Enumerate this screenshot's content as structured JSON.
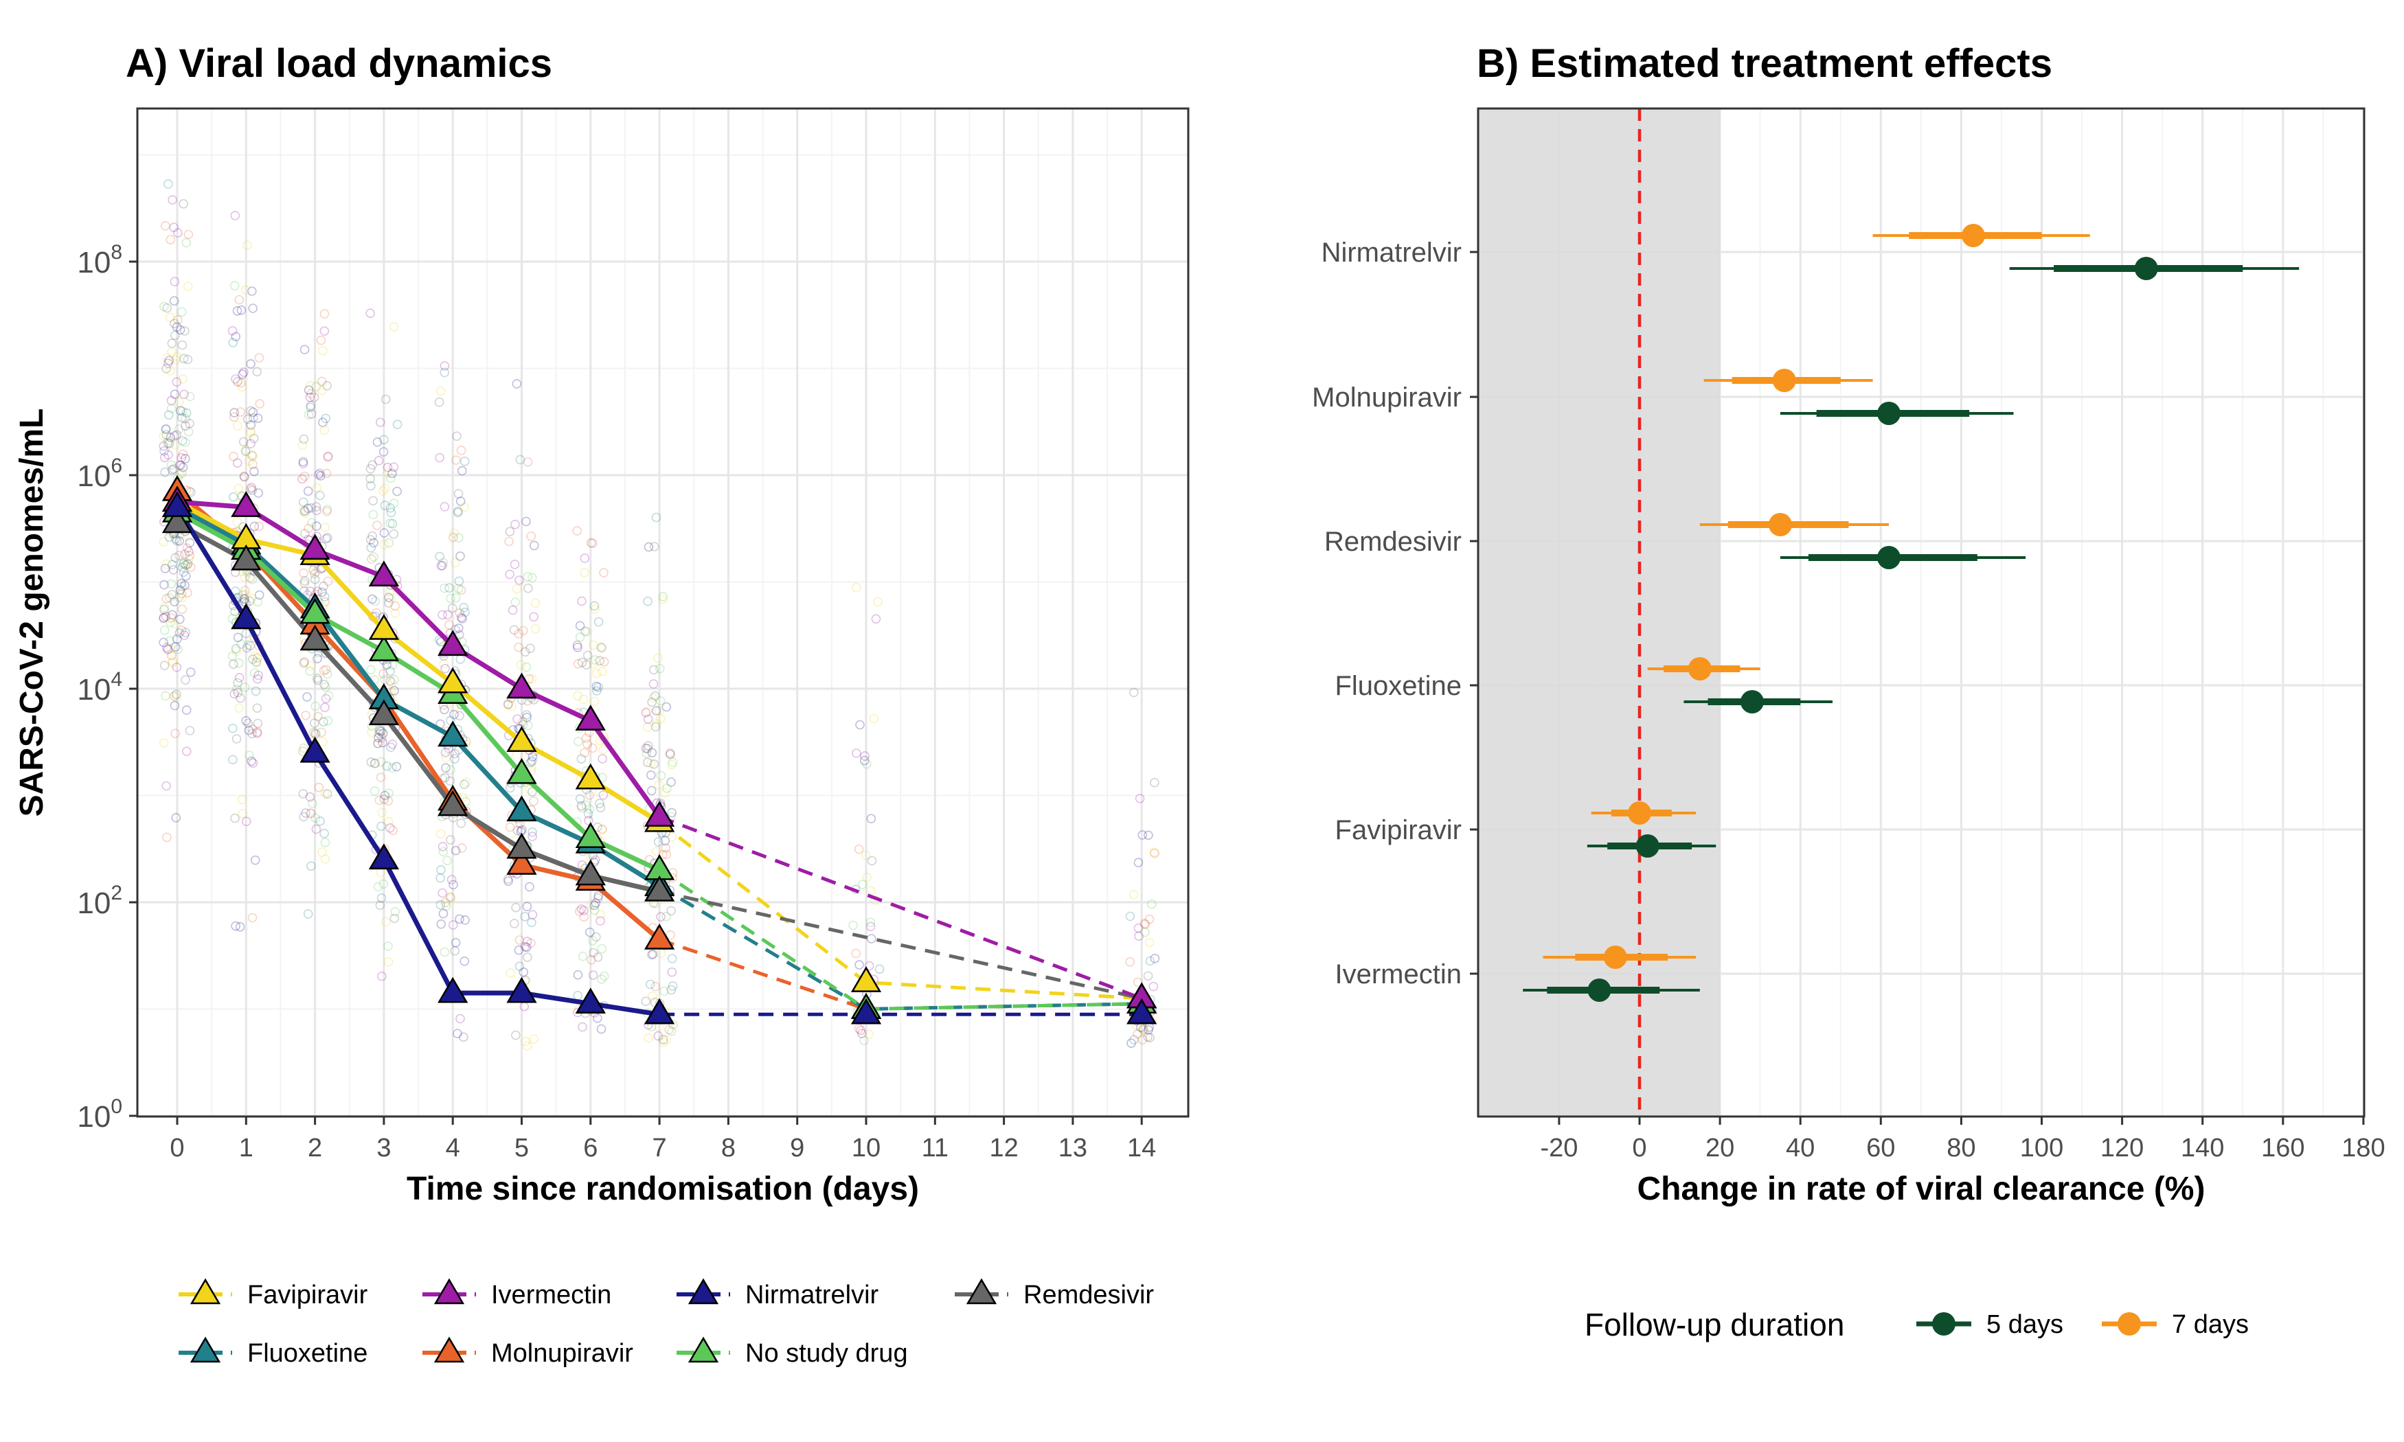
{
  "chart_data": [
    {
      "type": "line",
      "title": "A) Viral load dynamics",
      "xlabel": "Time since randomisation (days)",
      "ylabel": "SARS-CoV-2 genomes/mL",
      "y_scale": "log10",
      "ylim_log10": [
        0,
        9.3
      ],
      "y_ticks": [
        {
          "base": "10",
          "exp": "0"
        },
        {
          "base": "10",
          "exp": "2"
        },
        {
          "base": "10",
          "exp": "4"
        },
        {
          "base": "10",
          "exp": "6"
        },
        {
          "base": "10",
          "exp": "8"
        }
      ],
      "x_ticks": [
        "0",
        "1",
        "2",
        "3",
        "4",
        "5",
        "6",
        "7",
        "8",
        "9",
        "10",
        "11",
        "12",
        "13",
        "14"
      ],
      "grid": true,
      "legend_position": "bottom",
      "solid_segment_note": "solid lines days 0-7, dashed to days 10 and 14",
      "series": [
        {
          "name": "Favipiravir",
          "color": "#f2d41b",
          "x": [
            0,
            1,
            2,
            3,
            4,
            5,
            6,
            7,
            10,
            14
          ],
          "log10_y": [
            5.75,
            5.4,
            5.25,
            4.55,
            4.05,
            3.5,
            3.15,
            2.75,
            1.25,
            1.1
          ]
        },
        {
          "name": "Ivermectin",
          "color": "#9e1ca6",
          "x": [
            0,
            1,
            2,
            3,
            4,
            5,
            6,
            7,
            14
          ],
          "log10_y": [
            5.75,
            5.7,
            5.3,
            5.05,
            4.4,
            4.0,
            3.7,
            2.8,
            1.1
          ]
        },
        {
          "name": "Nirmatrelvir",
          "color": "#1a1a8c",
          "x": [
            0,
            1,
            2,
            3,
            4,
            5,
            6,
            7,
            10,
            14
          ],
          "log10_y": [
            5.7,
            4.65,
            3.4,
            2.4,
            1.15,
            1.15,
            1.05,
            0.95,
            0.95,
            0.95
          ]
        },
        {
          "name": "Remdesivir",
          "color": "#666666",
          "x": [
            0,
            1,
            2,
            3,
            4,
            5,
            6,
            7,
            14
          ],
          "log10_y": [
            5.55,
            5.2,
            4.45,
            3.75,
            2.9,
            2.5,
            2.25,
            2.1,
            1.1
          ]
        },
        {
          "name": "Fluoxetine",
          "color": "#227f8c",
          "x": [
            0,
            1,
            2,
            3,
            4,
            5,
            6,
            7,
            10,
            14
          ],
          "log10_y": [
            5.7,
            5.35,
            4.75,
            3.9,
            3.55,
            2.85,
            2.55,
            2.15,
            1.0,
            1.05
          ]
        },
        {
          "name": "Molnupiravir",
          "color": "#e8632b",
          "x": [
            0,
            1,
            2,
            3,
            4,
            5,
            6,
            7,
            10,
            14
          ],
          "log10_y": [
            5.85,
            5.3,
            4.6,
            3.9,
            2.95,
            2.35,
            2.2,
            1.65,
            1.0,
            1.05
          ]
        },
        {
          "name": "No study drug",
          "color": "#5cc85a",
          "x": [
            0,
            1,
            2,
            3,
            4,
            5,
            6,
            7,
            10,
            14
          ],
          "log10_y": [
            5.65,
            5.3,
            4.7,
            4.35,
            3.95,
            3.2,
            2.6,
            2.3,
            1.0,
            1.05
          ]
        }
      ]
    },
    {
      "type": "scatter",
      "title": "B) Estimated treatment effects",
      "xlabel": "Change in rate of viral clearance (%)",
      "xlim": [
        -40,
        180
      ],
      "x_ticks": [
        "-20",
        "0",
        "20",
        "40",
        "60",
        "80",
        "100",
        "120",
        "140",
        "160",
        "180"
      ],
      "shaded_region": [
        -40,
        20
      ],
      "reference_line": 0,
      "categories": [
        "Nirmatrelvir",
        "Molnupiravir",
        "Remdesivir",
        "Fluoxetine",
        "Favipiravir",
        "Ivermectin"
      ],
      "legend_title": "Follow-up duration",
      "legend_position": "bottom",
      "series": [
        {
          "name": "5 days",
          "color": "#0e4d2b",
          "points": [
            {
              "category": "Nirmatrelvir",
              "est": 126,
              "lo95": 92,
              "hi95": 164,
              "lo80": 103,
              "hi80": 150
            },
            {
              "category": "Molnupiravir",
              "est": 62,
              "lo95": 35,
              "hi95": 93,
              "lo80": 44,
              "hi80": 82
            },
            {
              "category": "Remdesivir",
              "est": 62,
              "lo95": 35,
              "hi95": 96,
              "lo80": 42,
              "hi80": 84
            },
            {
              "category": "Fluoxetine",
              "est": 28,
              "lo95": 11,
              "hi95": 48,
              "lo80": 17,
              "hi80": 40
            },
            {
              "category": "Favipiravir",
              "est": 2,
              "lo95": -13,
              "hi95": 19,
              "lo80": -8,
              "hi80": 13
            },
            {
              "category": "Ivermectin",
              "est": -10,
              "lo95": -29,
              "hi95": 15,
              "lo80": -23,
              "hi80": 5
            }
          ]
        },
        {
          "name": "7 days",
          "color": "#f7941d",
          "points": [
            {
              "category": "Nirmatrelvir",
              "est": 83,
              "lo95": 58,
              "hi95": 112,
              "lo80": 67,
              "hi80": 100
            },
            {
              "category": "Molnupiravir",
              "est": 36,
              "lo95": 16,
              "hi95": 58,
              "lo80": 23,
              "hi80": 50
            },
            {
              "category": "Remdesivir",
              "est": 35,
              "lo95": 15,
              "hi95": 62,
              "lo80": 22,
              "hi80": 52
            },
            {
              "category": "Fluoxetine",
              "est": 15,
              "lo95": 2,
              "hi95": 30,
              "lo80": 6,
              "hi80": 25
            },
            {
              "category": "Favipiravir",
              "est": 0,
              "lo95": -12,
              "hi95": 14,
              "lo80": -7,
              "hi80": 8
            },
            {
              "category": "Ivermectin",
              "est": -6,
              "lo95": -24,
              "hi95": 14,
              "lo80": -16,
              "hi80": 7
            }
          ]
        }
      ]
    }
  ]
}
